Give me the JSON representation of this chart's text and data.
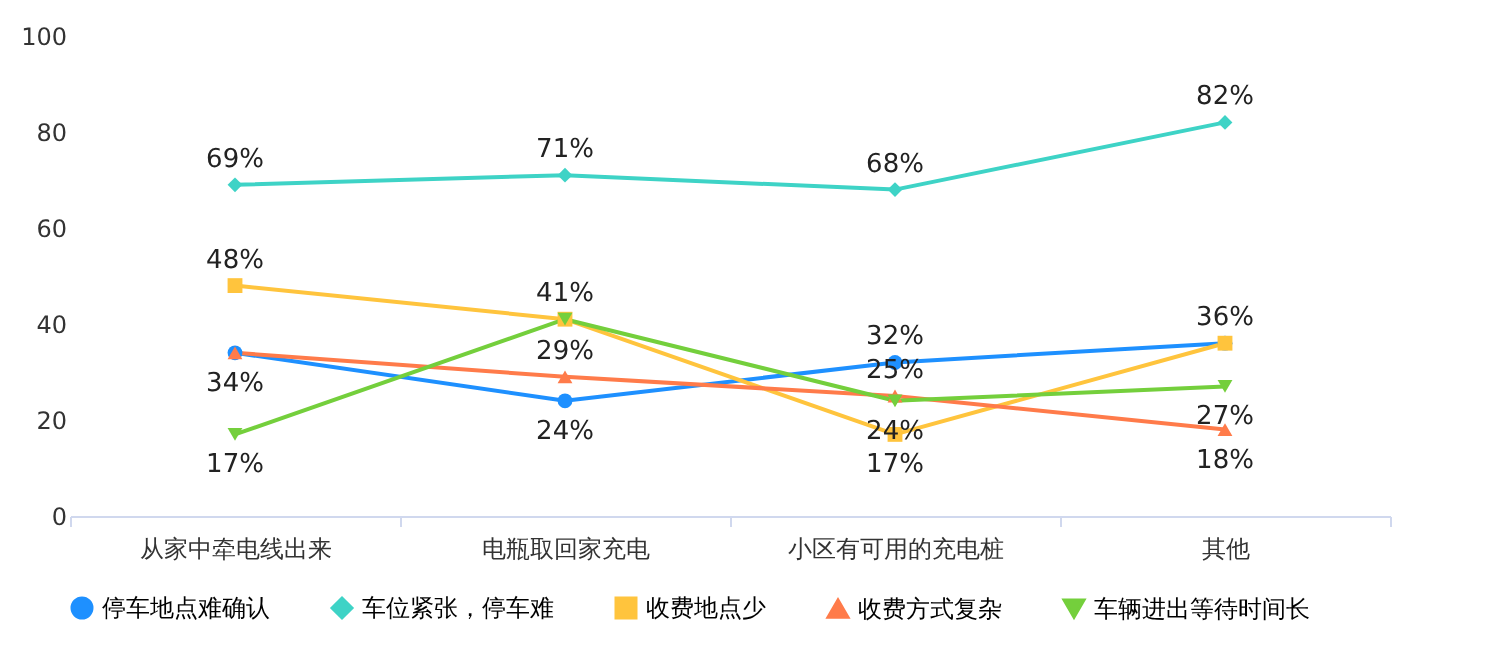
{
  "chart_data": {
    "type": "line",
    "categories": [
      "从家中牵电线出来",
      "电瓶取回家充电",
      "小区有可用的充电桩",
      "其他"
    ],
    "series": [
      {
        "name": "停车地点难确认",
        "color": "#1e90ff",
        "marker": "circle",
        "values": [
          34,
          24,
          32,
          36
        ],
        "value_labels": [
          "34%",
          "24%",
          "32%",
          null
        ]
      },
      {
        "name": "车位紧张，停车难",
        "color": "#3ed3c6",
        "marker": "diamond",
        "values": [
          69,
          71,
          68,
          82
        ],
        "value_labels": [
          "69%",
          "71%",
          "68%",
          "82%"
        ]
      },
      {
        "name": "收费地点少",
        "color": "#ffc43d",
        "marker": "square",
        "values": [
          48,
          41,
          17,
          36
        ],
        "value_labels": [
          "48%",
          "41%",
          "17%",
          "36%"
        ]
      },
      {
        "name": "收费方式复杂",
        "color": "#ff7b4a",
        "marker": "triangle",
        "values": [
          34,
          29,
          25,
          18
        ],
        "value_labels": [
          null,
          "29%",
          "25%",
          "18%"
        ]
      },
      {
        "name": "车辆进出等待时间长",
        "color": "#74cf3c",
        "marker": "triangle-down",
        "values": [
          17,
          41,
          24,
          27
        ],
        "value_labels": [
          "17%",
          null,
          "24%",
          "27%"
        ]
      }
    ],
    "ylim": [
      0,
      100
    ],
    "yticks": [
      0,
      20,
      40,
      60,
      80,
      100
    ],
    "legend": "bottom"
  }
}
